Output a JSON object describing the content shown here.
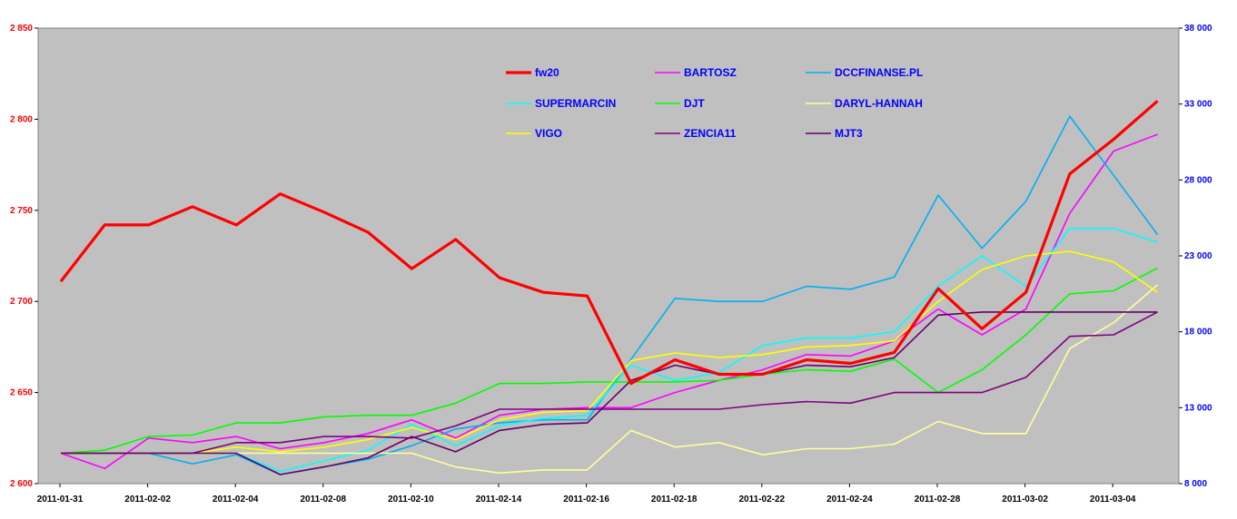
{
  "chart_data": {
    "type": "line",
    "title": "",
    "xlabel": "",
    "ylabel": "",
    "ylim": [
      2600,
      2850
    ],
    "y2lim": [
      8000,
      38000
    ],
    "y_ticks": [
      "2 600",
      "2 650",
      "2 700",
      "2 750",
      "2 800",
      "2 850"
    ],
    "y2_ticks": [
      "8 000",
      "13 000",
      "18 000",
      "23 000",
      "28 000",
      "33 000",
      "38 000"
    ],
    "x_labels": [
      "2011-01-31",
      "2011-02-02",
      "2011-02-04",
      "2011-02-08",
      "2011-02-10",
      "2011-02-14",
      "2011-02-16",
      "2011-02-18",
      "2011-02-22",
      "2011-02-24",
      "2011-02-28",
      "2011-03-02",
      "2011-03-04"
    ],
    "x": [
      "2011-01-31",
      "2011-02-01",
      "2011-02-02",
      "2011-02-03",
      "2011-02-04",
      "2011-02-07",
      "2011-02-08",
      "2011-02-09",
      "2011-02-10",
      "2011-02-11",
      "2011-02-14",
      "2011-02-15",
      "2011-02-16",
      "2011-02-17",
      "2011-02-18",
      "2011-02-21",
      "2011-02-22",
      "2011-02-23",
      "2011-02-24",
      "2011-02-25",
      "2011-02-28",
      "2011-03-01",
      "2011-03-02",
      "2011-03-03",
      "2011-03-04",
      "2011-03-07"
    ],
    "grid": false,
    "legend_position": "top-center",
    "plot_background": "#c0c0c0",
    "series": [
      {
        "name": "fw20",
        "axis": "left",
        "color": "#ff0000",
        "width": 3.2,
        "values": [
          2711,
          2742,
          2742,
          2752,
          2742,
          2759,
          2749,
          2738,
          2718,
          2734,
          2713,
          2705,
          2703,
          2655,
          2668,
          2660,
          2660,
          2668,
          2666,
          2672,
          2707,
          2685,
          2705,
          2770,
          2789,
          2810
        ]
      },
      {
        "name": "BARTOSZ",
        "axis": "right",
        "color": "#ff00ff",
        "width": 1.6,
        "values": [
          10000,
          9000,
          11000,
          10700,
          11100,
          10300,
          10700,
          11300,
          12200,
          11000,
          12500,
          12900,
          13000,
          13000,
          14000,
          14800,
          15500,
          16500,
          16400,
          17400,
          19500,
          17800,
          19500,
          25800,
          29900,
          31000
        ]
      },
      {
        "name": "DCCFINANSE.PL",
        "axis": "right",
        "color": "#00b0f0",
        "width": 1.6,
        "values": [
          10000,
          10000,
          10000,
          9300,
          9900,
          8600,
          9100,
          9600,
          10500,
          11600,
          12000,
          12200,
          12200,
          16200,
          20200,
          20000,
          20000,
          21000,
          20800,
          21600,
          27000,
          23500,
          26600,
          32200,
          28300,
          24400
        ]
      },
      {
        "name": "SUPERMARCIN",
        "axis": "right",
        "color": "#00ffff",
        "width": 1.6,
        "values": [
          10000,
          10000,
          10000,
          10000,
          10000,
          8800,
          9500,
          10200,
          11900,
          10500,
          11800,
          12300,
          12500,
          15800,
          14800,
          15300,
          17100,
          17600,
          17600,
          18000,
          21000,
          23000,
          21000,
          24800,
          24800,
          23900
        ]
      },
      {
        "name": "DJT",
        "axis": "right",
        "color": "#00ff00",
        "width": 1.6,
        "values": [
          10000,
          10200,
          11100,
          11200,
          12000,
          12000,
          12400,
          12500,
          12500,
          13300,
          14600,
          14600,
          14700,
          14700,
          14700,
          14800,
          15200,
          15500,
          15400,
          16200,
          14000,
          15500,
          17800,
          20500,
          20700,
          22200
        ]
      },
      {
        "name": "DARYL-HANNAH",
        "axis": "right",
        "color": "#ffff99",
        "width": 1.6,
        "values": [
          10000,
          10000,
          10000,
          10000,
          10000,
          10000,
          10000,
          10000,
          10000,
          9100,
          8700,
          8900,
          8900,
          11500,
          10400,
          10700,
          9900,
          10300,
          10300,
          10600,
          12100,
          11300,
          11300,
          16900,
          18600,
          21100
        ]
      },
      {
        "name": "VIGO",
        "axis": "right",
        "color": "#ffff00",
        "width": 1.6,
        "values": [
          10000,
          10000,
          10000,
          10000,
          10400,
          10100,
          10400,
          10900,
          11700,
          10900,
          12200,
          12700,
          12800,
          16100,
          16600,
          16300,
          16500,
          17000,
          17100,
          17400,
          20000,
          22100,
          23000,
          23300,
          22600,
          20600
        ]
      },
      {
        "name": "ZENCIA11",
        "axis": "right",
        "color": "#800080",
        "width": 1.6,
        "values": [
          10000,
          10000,
          10000,
          10000,
          10700,
          10700,
          11100,
          11100,
          11000,
          11800,
          12900,
          12900,
          12900,
          12900,
          12900,
          12900,
          13200,
          13400,
          13300,
          14000,
          14000,
          14000,
          15000,
          17700,
          17800,
          19300
        ]
      },
      {
        "name": "MJT3",
        "axis": "right",
        "color": "#660066",
        "width": 1.6,
        "values": [
          10000,
          10000,
          10000,
          10000,
          10000,
          8600,
          9100,
          9700,
          11100,
          10100,
          11500,
          11900,
          12000,
          14800,
          15800,
          15200,
          15200,
          15800,
          15700,
          16300,
          19100,
          19300,
          19300,
          19300,
          19300,
          19300
        ]
      }
    ]
  }
}
